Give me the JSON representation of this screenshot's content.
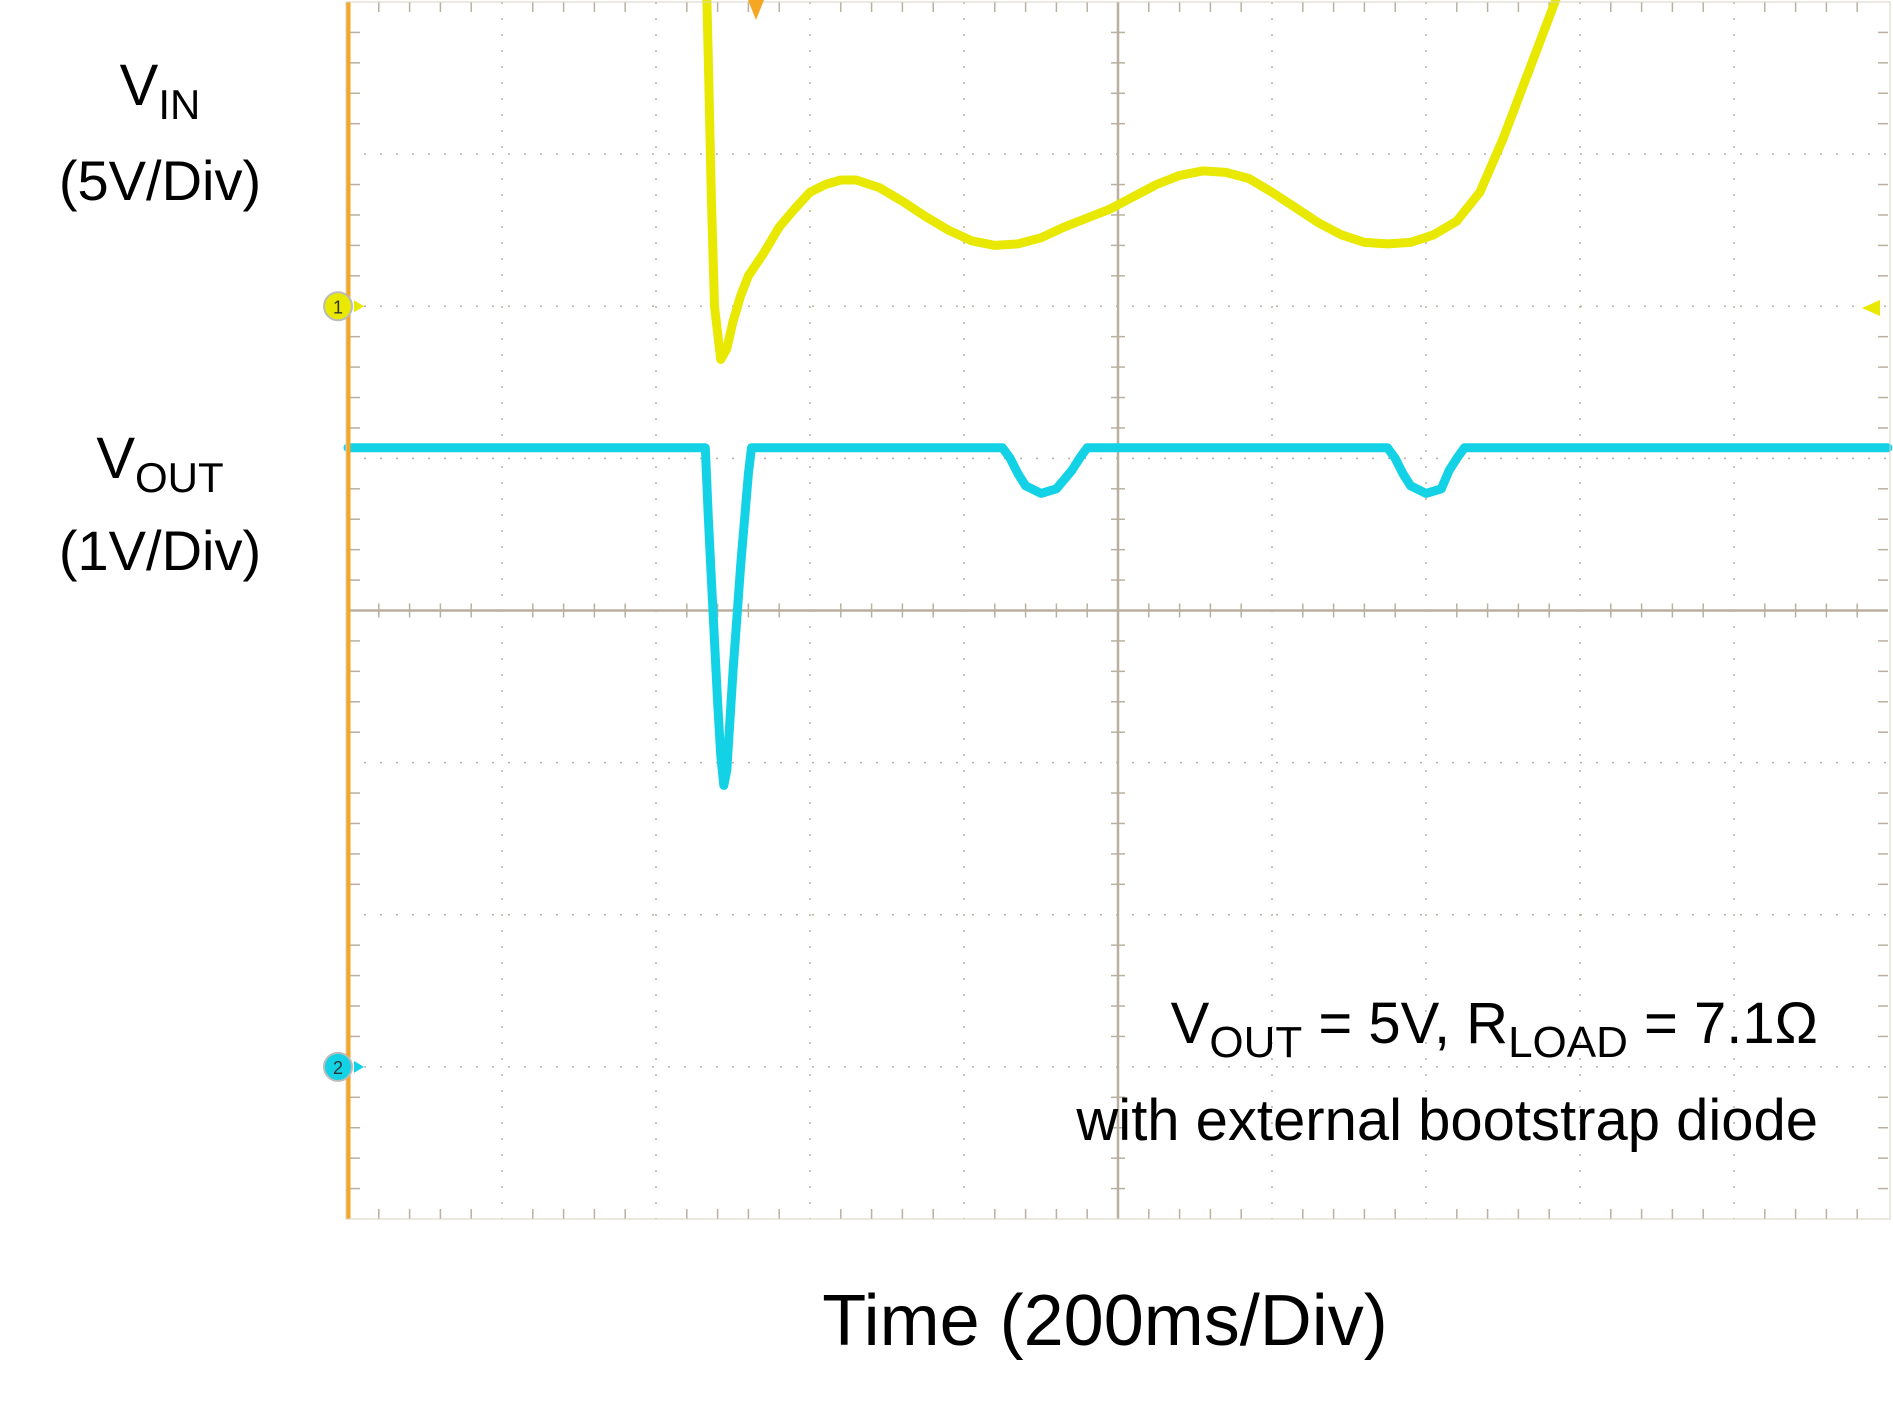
{
  "chart_data": {
    "type": "line",
    "xlabel": "Time (200ms/Div)",
    "x_div": 10,
    "y_div": 8,
    "grid": true,
    "colors": {
      "ch1": "#e8e800",
      "ch2": "#14d2e6",
      "grid": "#b9b09f",
      "frame": "#f5a623"
    },
    "channels": [
      {
        "id": "ch1",
        "name": "V",
        "name_sub": "IN",
        "scale": "(5V/Div)",
        "marker": "1",
        "marker_div": 6.0,
        "x": [
          0,
          2.32,
          2.34,
          2.36,
          2.38,
          2.42,
          2.46,
          2.5,
          2.55,
          2.6,
          2.7,
          2.8,
          2.9,
          3.0,
          3.1,
          3.2,
          3.3,
          3.45,
          3.6,
          3.75,
          3.9,
          4.05,
          4.2,
          4.35,
          4.5,
          4.65,
          4.8,
          4.95,
          5.1,
          5.25,
          5.4,
          5.55,
          5.7,
          5.85,
          6.0,
          6.15,
          6.3,
          6.45,
          6.6,
          6.75,
          6.9,
          7.05,
          7.2,
          7.35,
          7.5,
          7.65,
          7.8,
          7.95,
          8.1,
          8.25,
          8.4,
          10.0
        ],
        "y": [
          8.45,
          8.45,
          7.6,
          6.7,
          6.0,
          5.65,
          5.72,
          5.9,
          6.07,
          6.2,
          6.35,
          6.52,
          6.64,
          6.75,
          6.8,
          6.83,
          6.83,
          6.78,
          6.69,
          6.59,
          6.5,
          6.43,
          6.4,
          6.41,
          6.45,
          6.52,
          6.58,
          6.64,
          6.72,
          6.8,
          6.86,
          6.89,
          6.88,
          6.84,
          6.75,
          6.65,
          6.55,
          6.47,
          6.42,
          6.41,
          6.42,
          6.47,
          6.56,
          6.75,
          7.1,
          7.5,
          7.9,
          8.3,
          8.45,
          8.45,
          8.45,
          8.45
        ]
      },
      {
        "id": "ch2",
        "name": "V",
        "name_sub": "OUT",
        "scale": "(1V/Div)",
        "marker": "2",
        "marker_div": 1.0,
        "x": [
          0,
          2.32,
          2.34,
          2.36,
          2.38,
          2.4,
          2.42,
          2.44,
          2.46,
          2.5,
          2.55,
          2.6,
          2.62,
          2.65,
          4.25,
          4.3,
          4.35,
          4.4,
          4.5,
          4.6,
          4.7,
          4.75,
          4.8,
          4.85,
          6.75,
          6.8,
          6.85,
          6.9,
          7.0,
          7.1,
          7.15,
          7.2,
          7.25,
          7.3,
          10.0
        ],
        "y": [
          5.07,
          5.07,
          4.6,
          4.2,
          3.8,
          3.4,
          3.05,
          2.85,
          2.95,
          3.6,
          4.3,
          4.9,
          5.07,
          5.07,
          5.07,
          5.0,
          4.9,
          4.82,
          4.77,
          4.8,
          4.92,
          5.0,
          5.07,
          5.07,
          5.07,
          5.0,
          4.9,
          4.82,
          4.77,
          4.8,
          4.92,
          5.0,
          5.07,
          5.07,
          5.07
        ]
      }
    ],
    "annotation": {
      "line1": {
        "a": "V",
        "a_sub": "OUT",
        "b": " = 5V, R",
        "b_sub": "LOAD",
        "c": " = 7.1Ω"
      },
      "line2": "with external bootstrap diode"
    }
  }
}
